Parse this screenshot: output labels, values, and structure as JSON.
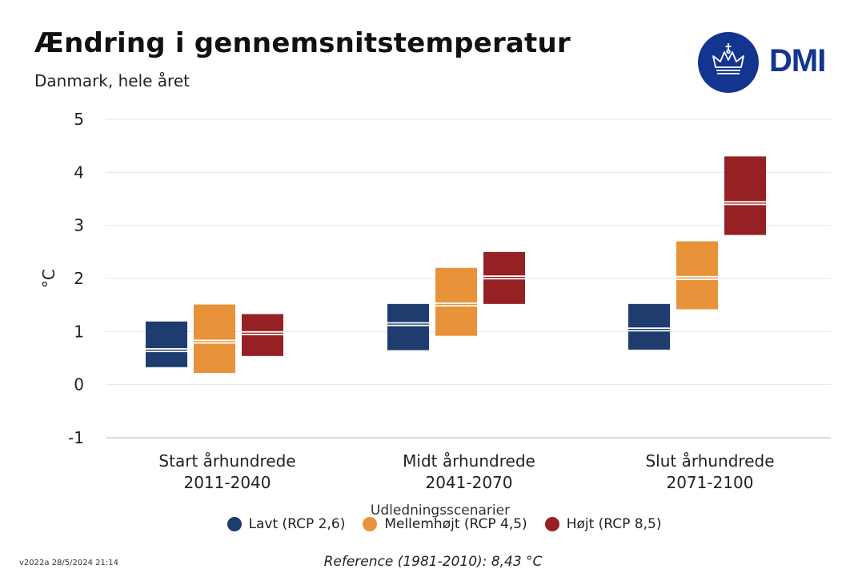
{
  "header": {
    "title": "Ændring i gennemsnitstemperatur",
    "subtitle": "Danmark, hele året",
    "logo_text": "DMI"
  },
  "footer": {
    "version": "v2022a 28/5/2024 21:14",
    "reference": "Reference (1981-2010): 8,43 °C"
  },
  "colors": {
    "low": "#1f3c6e",
    "mid": "#e8923a",
    "high": "#962124",
    "logo": "#13358f"
  },
  "chart_data": {
    "type": "floating-bar",
    "title": "Ændring i gennemsnitstemperatur",
    "subtitle": "Danmark, hele året",
    "ylabel": "°C",
    "ylim": [
      -1,
      5
    ],
    "yticks": [
      5,
      4,
      3,
      2,
      1,
      0,
      -1
    ],
    "categories": [
      [
        "Start århundrede",
        "2011-2040"
      ],
      [
        "Midt århundrede",
        "2041-2070"
      ],
      [
        "Slut århundrede",
        "2071-2100"
      ]
    ],
    "legend_title": "Udledningsscenarier",
    "series": [
      {
        "name": "Lavt (RCP 2,6)",
        "color": "#1f3c6e",
        "low": [
          0.33,
          0.65,
          0.66
        ],
        "median": [
          0.65,
          1.14,
          1.04
        ],
        "high": [
          1.19,
          1.52,
          1.52
        ]
      },
      {
        "name": "Mellemhøjt (RCP 4,5)",
        "color": "#e8923a",
        "low": [
          0.22,
          0.92,
          1.42
        ],
        "median": [
          0.81,
          1.51,
          2.01
        ],
        "high": [
          1.51,
          2.2,
          2.7
        ]
      },
      {
        "name": "Højt (RCP 8,5)",
        "color": "#962124",
        "low": [
          0.54,
          1.52,
          2.82
        ],
        "median": [
          0.97,
          2.02,
          3.42
        ],
        "high": [
          1.33,
          2.5,
          4.3
        ]
      }
    ]
  }
}
